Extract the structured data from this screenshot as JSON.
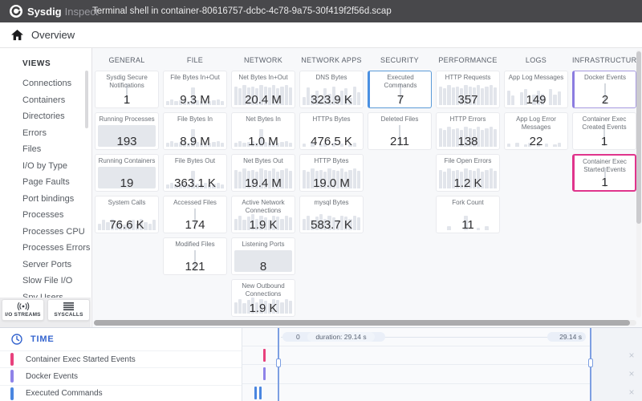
{
  "topbar": {
    "brand": "Sysdig",
    "brand_suffix": "Inspect",
    "capture_title": "Terminal shell in container-80616757-dcbc-4c78-9a75-30f419f2f56d.scap"
  },
  "breadcrumb": {
    "label": "Overview"
  },
  "sidebar": {
    "header": "VIEWS",
    "items": [
      "Connections",
      "Containers",
      "Directories",
      "Errors",
      "Files",
      "I/O by Type",
      "Page Faults",
      "Port bindings",
      "Processes",
      "Processes CPU",
      "Processes Errors",
      "Server Ports",
      "Slow File I/O",
      "Spy Users"
    ],
    "buttons": [
      {
        "id": "io-streams",
        "label": "I/O STREAMS"
      },
      {
        "id": "syscalls",
        "label": "SYSCALLS"
      }
    ]
  },
  "metrics": {
    "columns": [
      {
        "header": "GENERAL",
        "tiles": [
          {
            "title": "Sysdig Secure Notifications",
            "value": "1",
            "spark": "spike"
          },
          {
            "title": "Running Processes",
            "value": "193",
            "spark": "solid"
          },
          {
            "title": "Running Containers",
            "value": "19",
            "spark": "solid"
          },
          {
            "title": "System Calls",
            "value": "76.6 K",
            "spark": "wave"
          }
        ]
      },
      {
        "header": "FILE",
        "tiles": [
          {
            "title": "File Bytes In+Out",
            "value": "9.3 M",
            "spark": "low-spike"
          },
          {
            "title": "File Bytes In",
            "value": "8.9 M",
            "spark": "low-spike"
          },
          {
            "title": "File Bytes Out",
            "value": "363.1 K",
            "spark": "low-spike"
          },
          {
            "title": "Accessed Files",
            "value": "174",
            "spark": "spike"
          },
          {
            "title": "Modified Files",
            "value": "121",
            "spark": "spike"
          }
        ]
      },
      {
        "header": "NETWORK",
        "tiles": [
          {
            "title": "Net Bytes In+Out",
            "value": "20.4 M",
            "spark": "dense-tall"
          },
          {
            "title": "Net Bytes In",
            "value": "1.0 M",
            "spark": "low-spike"
          },
          {
            "title": "Net Bytes Out",
            "value": "19.4 M",
            "spark": "dense-tall"
          },
          {
            "title": "Active Network Connections",
            "value": "1.9 K",
            "spark": "dense-med"
          },
          {
            "title": "Listening Ports",
            "value": "8",
            "spark": "solid"
          },
          {
            "title": "New Outbound Connections",
            "value": "1.9 K",
            "spark": "dense-med"
          }
        ]
      },
      {
        "header": "NETWORK APPS",
        "tiles": [
          {
            "title": "DNS Bytes",
            "value": "323.9 K",
            "spark": "dense-varied"
          },
          {
            "title": "HTTPs Bytes",
            "value": "476.5 K",
            "spark": "sparse-low"
          },
          {
            "title": "HTTP Bytes",
            "value": "19.0 M",
            "spark": "dense-tall"
          },
          {
            "title": "mysql Bytes",
            "value": "583.7 K",
            "spark": "dense-med"
          }
        ]
      },
      {
        "header": "SECURITY",
        "tiles": [
          {
            "title": "Executed Commands",
            "value": "7",
            "spark": "spike",
            "highlight": "blue"
          },
          {
            "title": "Deleted Files",
            "value": "211",
            "spark": "spike"
          }
        ]
      },
      {
        "header": "PERFORMANCE",
        "tiles": [
          {
            "title": "HTTP Requests",
            "value": "357",
            "spark": "dense-tall"
          },
          {
            "title": "HTTP Errors",
            "value": "138",
            "spark": "dense-tall"
          },
          {
            "title": "File Open Errors",
            "value": "1.2 K",
            "spark": "dense-tall"
          },
          {
            "title": "Fork Count",
            "value": "11",
            "spark": "sparse-spikes"
          }
        ]
      },
      {
        "header": "LOGS",
        "tiles": [
          {
            "title": "App Log Messages",
            "value": "149",
            "spark": "dense-gap"
          },
          {
            "title": "App Log Error Messages",
            "value": "22",
            "spark": "sparse-low"
          }
        ]
      },
      {
        "header": "INFRASTRUCTURE",
        "tiles": [
          {
            "title": "Docker Events",
            "value": "2",
            "spark": "spike",
            "highlight": "purple"
          },
          {
            "title": "Container Exec Created Events",
            "value": "1",
            "spark": "spike"
          },
          {
            "title": "Container Exec Started Events",
            "value": "1",
            "spark": "spike",
            "highlight": "pink"
          }
        ]
      }
    ]
  },
  "timeline": {
    "header": "TIME",
    "slider": {
      "start_label": "0",
      "duration_label": "duration: 29.14 s",
      "end_label": "29.14 s"
    },
    "rows": [
      {
        "label": "Container Exec Started Events",
        "color": "#e8417d",
        "markers_pct": [
          5.3
        ]
      },
      {
        "label": "Docker Events",
        "color": "#8f83e8",
        "markers_pct": [
          5.3
        ]
      },
      {
        "label": "Executed Commands",
        "color": "#4a86e0",
        "markers_pct": [
          3.0,
          4.3
        ]
      }
    ],
    "close_icon": "×",
    "brush": {
      "left_pct": 8.8,
      "right_pct": 87.0
    }
  },
  "colors": {
    "accent_blue": "#4a90e2",
    "accent_purple": "#8b7ce0",
    "accent_pink": "#e0348c"
  }
}
